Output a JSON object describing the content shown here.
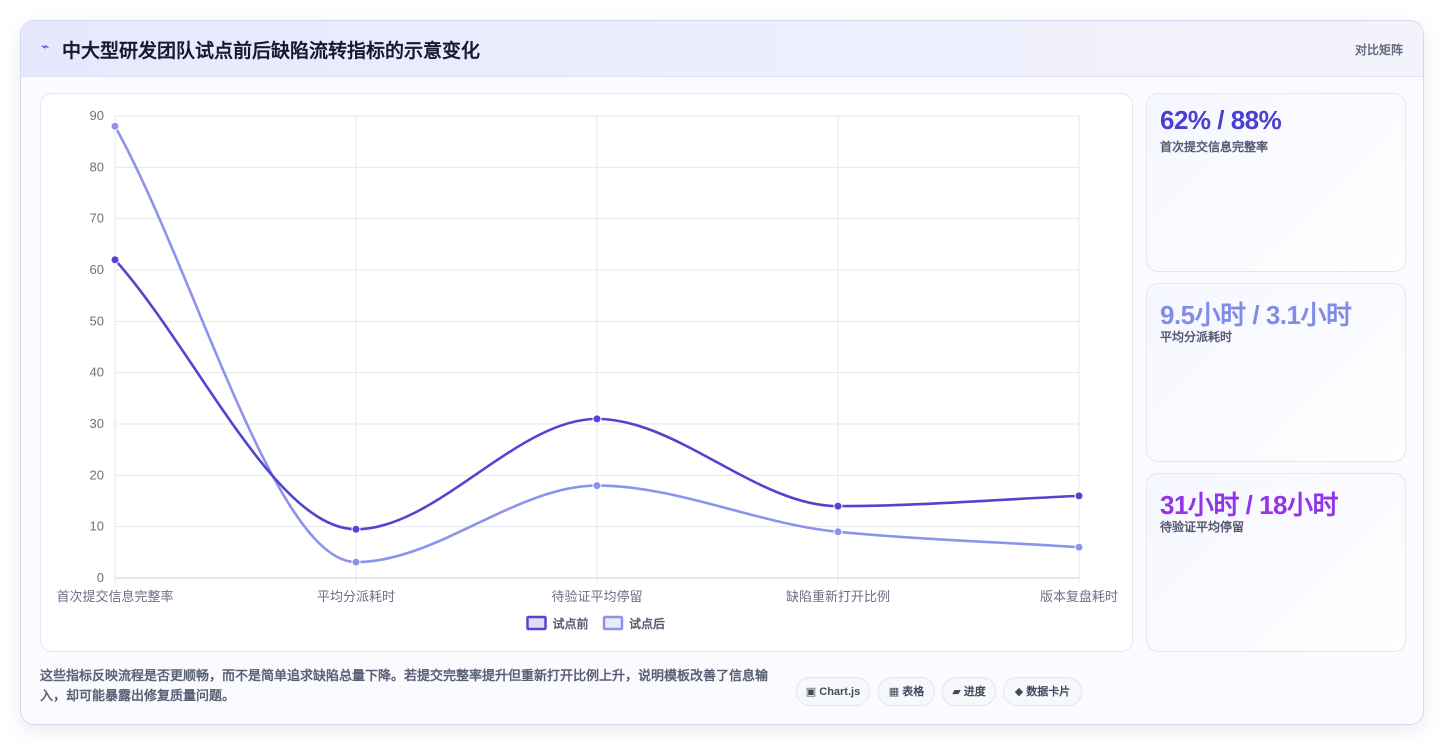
{
  "header": {
    "icon": "bolt-icon",
    "title": "中大型研发团队试点前后缺陷流转指标的示意变化",
    "right_label": "对比矩阵"
  },
  "chart_data": {
    "type": "line",
    "categories": [
      "首次提交信息完整率",
      "平均分派耗时",
      "待验证平均停留",
      "缺陷重新打开比例",
      "版本复盘耗时"
    ],
    "series": [
      {
        "name": "试点前",
        "values": [
          62,
          9.5,
          31,
          14,
          16
        ],
        "color": "#5244cf"
      },
      {
        "name": "试点后",
        "values": [
          88,
          3.1,
          18,
          9,
          6
        ],
        "color": "#8b94ea"
      }
    ],
    "ylim": [
      0,
      90
    ],
    "yticks": [
      0,
      10,
      20,
      30,
      40,
      50,
      60,
      70,
      80,
      90
    ],
    "grid": true,
    "legend_position": "bottom",
    "smooth": true
  },
  "stats": [
    {
      "value": "62% / 88%",
      "label": "首次提交信息完整率",
      "color": "#4a3fcf"
    },
    {
      "value": "9.5小时 / 3.1小时",
      "label": "平均分派耗时",
      "color": "#7f8de6"
    },
    {
      "value": "31小时 / 18小时",
      "label": "待验证平均停留",
      "color": "#9333ea"
    }
  ],
  "footer": {
    "text": "这些指标反映流程是否更顺畅，而不是简单追求缺陷总量下降。若提交完整率提升但重新打开比例上升，说明模板改善了信息输入，却可能暴露出修复质量问题。",
    "chips": [
      {
        "icon": "▣",
        "icon_name": "chart-icon",
        "label": "Chart.js"
      },
      {
        "icon": "▦",
        "icon_name": "table-icon",
        "label": "表格"
      },
      {
        "icon": "▰",
        "icon_name": "progress-icon",
        "label": "进度"
      },
      {
        "icon": "◆",
        "icon_name": "data-card-icon",
        "label": "数据卡片"
      }
    ]
  }
}
